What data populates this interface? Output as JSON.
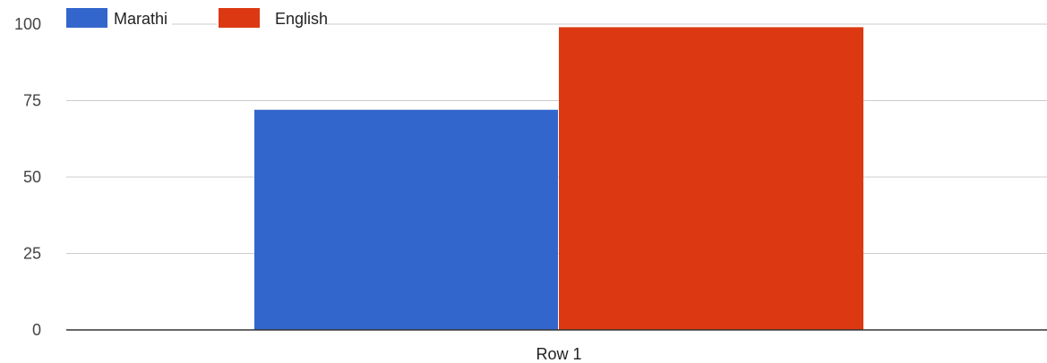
{
  "chart_data": {
    "type": "bar",
    "categories": [
      "Row 1"
    ],
    "series": [
      {
        "name": "Marathi",
        "values": [
          72
        ],
        "color": "#3366cc"
      },
      {
        "name": "English",
        "values": [
          99
        ],
        "color": "#dc3912"
      }
    ],
    "ylim": [
      0,
      100
    ],
    "yticks": [
      0,
      25,
      50,
      75,
      100
    ],
    "grid": true,
    "legend_position": "top-left"
  }
}
